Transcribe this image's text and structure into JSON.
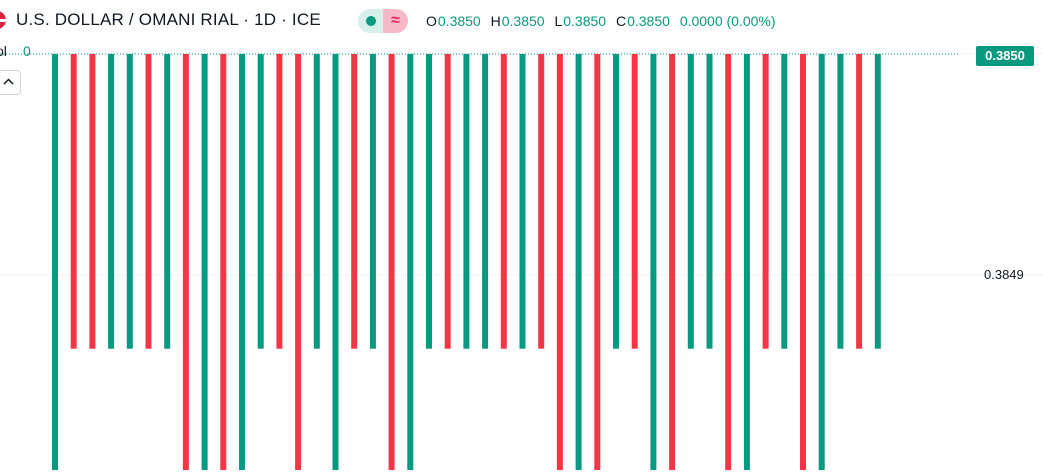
{
  "header": {
    "title": "U.S. DOLLAR / OMANI RIAL · 1D · ICE",
    "flag_icon": "us-flag-icon",
    "status_icons": [
      "market-open-dot-icon",
      "delayed-data-icon"
    ],
    "status_delay_glyph": "≈",
    "ohlc": {
      "o_label": "O",
      "o_value": "0.3850",
      "h_label": "H",
      "h_value": "0.3850",
      "l_label": "L",
      "l_value": "0.3850",
      "c_label": "C",
      "c_value": "0.3850",
      "change": "0.0000 (0.00%)"
    }
  },
  "volume": {
    "label": "ol",
    "value": "0"
  },
  "collapse_icon": "chevron-up-icon",
  "price_axis": {
    "current_price": "0.3850",
    "tick": "0.3849"
  },
  "colors": {
    "up": "#089981",
    "down": "#f23645",
    "grid": "#f0f3fa",
    "text": "#131722"
  },
  "chart_data": {
    "type": "bar",
    "ylim": [
      0.38485,
      0.385
    ],
    "tick_labels": [
      "0.3849",
      "0.3850"
    ],
    "series": [
      {
        "values": [
          [
            "up",
            0.38485
          ],
          [
            "down",
            0.3849
          ],
          [
            "down",
            0.3849
          ],
          [
            "up",
            0.3849
          ],
          [
            "up",
            0.3849
          ],
          [
            "down",
            0.3849
          ],
          [
            "up",
            0.3849
          ],
          [
            "down",
            0.38485
          ],
          [
            "up",
            0.38485
          ],
          [
            "down",
            0.38485
          ],
          [
            "up",
            0.38485
          ],
          [
            "up",
            0.3849
          ],
          [
            "down",
            0.3849
          ],
          [
            "down",
            0.38485
          ],
          [
            "up",
            0.3849
          ],
          [
            "up",
            0.38485
          ],
          [
            "down",
            0.3849
          ],
          [
            "up",
            0.3849
          ],
          [
            "down",
            0.38485
          ],
          [
            "up",
            0.38485
          ],
          [
            "up",
            0.3849
          ],
          [
            "down",
            0.3849
          ],
          [
            "up",
            0.3849
          ],
          [
            "up",
            0.3849
          ],
          [
            "down",
            0.3849
          ],
          [
            "up",
            0.3849
          ],
          [
            "down",
            0.3849
          ],
          [
            "down",
            0.38485
          ],
          [
            "up",
            0.38485
          ],
          [
            "down",
            0.38485
          ],
          [
            "up",
            0.3849
          ],
          [
            "down",
            0.3849
          ],
          [
            "up",
            0.38485
          ],
          [
            "down",
            0.38485
          ],
          [
            "up",
            0.3849
          ],
          [
            "up",
            0.3849
          ],
          [
            "down",
            0.38485
          ],
          [
            "up",
            0.38485
          ],
          [
            "down",
            0.3849
          ],
          [
            "up",
            0.3849
          ],
          [
            "down",
            0.38485
          ],
          [
            "up",
            0.38485
          ],
          [
            "up",
            0.3849
          ],
          [
            "down",
            0.3849
          ],
          [
            "up",
            0.3849
          ]
        ]
      }
    ]
  }
}
